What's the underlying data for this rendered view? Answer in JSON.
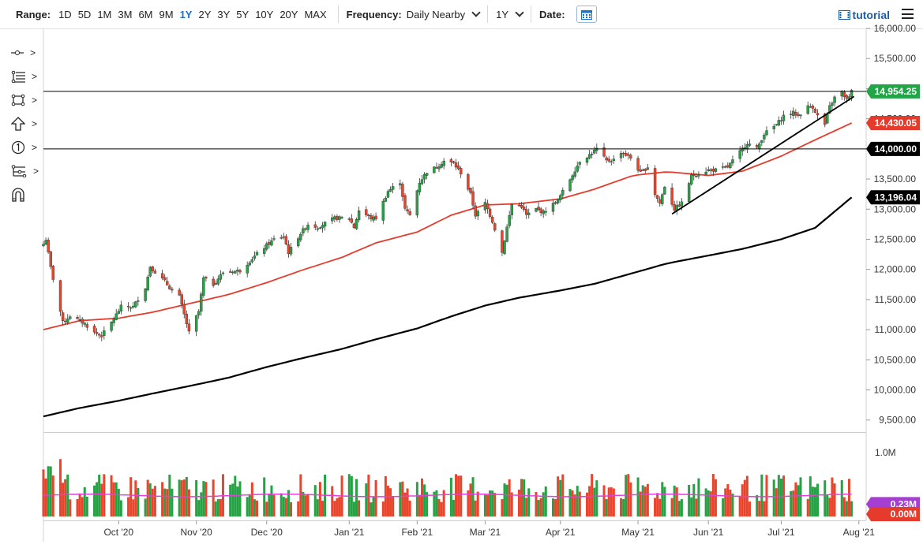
{
  "toolbar": {
    "range_label": "Range:",
    "ranges": [
      "1D",
      "5D",
      "1M",
      "3M",
      "6M",
      "9M",
      "1Y",
      "2Y",
      "3Y",
      "5Y",
      "10Y",
      "20Y",
      "MAX"
    ],
    "active_range": "1Y",
    "frequency_label": "Frequency:",
    "frequency_value": "Daily Nearby",
    "period_value": "1Y",
    "date_label": "Date:",
    "tutorial_label": "tutorial"
  },
  "sidebar": {
    "tools": [
      {
        "name": "crosshair-tool-icon"
      },
      {
        "name": "fibonacci-tool-icon"
      },
      {
        "name": "rectangle-tool-icon"
      },
      {
        "name": "arrow-up-tool-icon"
      },
      {
        "name": "number-marker-tool-icon"
      },
      {
        "name": "pattern-tool-icon"
      },
      {
        "name": "magnet-tool-icon"
      }
    ],
    "expand_glyph": ">"
  },
  "colors": {
    "up": "#25a244",
    "down": "#e8452c",
    "sma_short": "#e53b2c",
    "sma_long": "#000000",
    "badge_last": "#22a546",
    "badge_sma": "#e53b2c",
    "badge_level": "#000000",
    "volume_avg": "#e040d8",
    "badge_vol_avg": "#a53fd1",
    "badge_vol": "#e53b2c"
  },
  "chart_data": [
    {
      "type": "candlestick",
      "price_axis": {
        "min": 9300,
        "max": 16000,
        "ticks": [
          9500,
          10000,
          10500,
          11000,
          11500,
          12000,
          12500,
          13000,
          13500,
          14000,
          14500,
          15000,
          15500,
          16000
        ],
        "tick_labels": [
          "9,500.00",
          "10,000.00",
          "10,500.00",
          "11,000.00",
          "11,500.00",
          "12,000.00",
          "12,500.00",
          "13,000.00",
          "13,500.00",
          "14,000.00",
          "14,500.00",
          "15,000.00",
          "15,500.00",
          "16,000.00"
        ]
      },
      "x_axis": {
        "start": "2020-08-31",
        "end": "2021-08-05",
        "tick_dates": [
          "2020-10-01",
          "2020-11-02",
          "2020-12-01",
          "2021-01-04",
          "2021-02-01",
          "2021-03-01",
          "2021-04-01",
          "2021-05-03",
          "2021-06-01",
          "2021-07-01",
          "2021-08-02"
        ],
        "tick_labels": [
          "Oct '20",
          "Nov '20",
          "Dec '20",
          "Jan '21",
          "Feb '21",
          "Mar '21",
          "Apr '21",
          "May '21",
          "Jun '21",
          "Jul '21",
          "Aug '21"
        ]
      },
      "anchors": [
        [
          "2020-08-31",
          12420
        ],
        [
          "2020-09-01",
          12500
        ],
        [
          "2020-09-03",
          12030
        ],
        [
          "2020-09-08",
          11120
        ],
        [
          "2020-09-11",
          11230
        ],
        [
          "2020-09-17",
          11100
        ],
        [
          "2020-09-21",
          10950
        ],
        [
          "2020-09-24",
          10900
        ],
        [
          "2020-09-28",
          11120
        ],
        [
          "2020-10-02",
          11380
        ],
        [
          "2020-10-07",
          11380
        ],
        [
          "2020-10-12",
          11700
        ],
        [
          "2020-10-14",
          12050
        ],
        [
          "2020-10-16",
          11960
        ],
        [
          "2020-10-20",
          11800
        ],
        [
          "2020-10-23",
          11650
        ],
        [
          "2020-10-26",
          11550
        ],
        [
          "2020-10-30",
          10950
        ],
        [
          "2020-11-03",
          11300
        ],
        [
          "2020-11-05",
          11850
        ],
        [
          "2020-11-09",
          11750
        ],
        [
          "2020-11-13",
          11950
        ],
        [
          "2020-11-20",
          11980
        ],
        [
          "2020-11-25",
          12180
        ],
        [
          "2020-12-01",
          12400
        ],
        [
          "2020-12-04",
          12500
        ],
        [
          "2020-12-08",
          12550
        ],
        [
          "2020-12-10",
          12280
        ],
        [
          "2020-12-15",
          12600
        ],
        [
          "2020-12-18",
          12750
        ],
        [
          "2020-12-22",
          12700
        ],
        [
          "2020-12-29",
          12850
        ],
        [
          "2021-01-04",
          12850
        ],
        [
          "2021-01-06",
          12700
        ],
        [
          "2021-01-08",
          12980
        ],
        [
          "2021-01-13",
          12850
        ],
        [
          "2021-01-15",
          12850
        ],
        [
          "2021-01-20",
          13300
        ],
        [
          "2021-01-25",
          13450
        ],
        [
          "2021-01-27",
          13000
        ],
        [
          "2021-01-29",
          12900
        ],
        [
          "2021-02-02",
          13450
        ],
        [
          "2021-02-05",
          13620
        ],
        [
          "2021-02-09",
          13700
        ],
        [
          "2021-02-12",
          13800
        ],
        [
          "2021-02-16",
          13760
        ],
        [
          "2021-02-19",
          13600
        ],
        [
          "2021-02-23",
          13250
        ],
        [
          "2021-02-25",
          12900
        ],
        [
          "2021-03-01",
          13100
        ],
        [
          "2021-03-04",
          12800
        ],
        [
          "2021-03-08",
          12280
        ],
        [
          "2021-03-10",
          12700
        ],
        [
          "2021-03-12",
          13080
        ],
        [
          "2021-03-16",
          13050
        ],
        [
          "2021-03-18",
          12900
        ],
        [
          "2021-03-22",
          13000
        ],
        [
          "2021-03-25",
          12950
        ],
        [
          "2021-03-31",
          13150
        ],
        [
          "2021-04-05",
          13500
        ],
        [
          "2021-04-09",
          13800
        ],
        [
          "2021-04-13",
          13900
        ],
        [
          "2021-04-16",
          14000
        ],
        [
          "2021-04-20",
          13800
        ],
        [
          "2021-04-23",
          13820
        ],
        [
          "2021-04-26",
          13950
        ],
        [
          "2021-04-30",
          13850
        ],
        [
          "2021-05-04",
          13600
        ],
        [
          "2021-05-07",
          13700
        ],
        [
          "2021-05-10",
          13250
        ],
        [
          "2021-05-12",
          13100
        ],
        [
          "2021-05-14",
          13380
        ],
        [
          "2021-05-18",
          13000
        ],
        [
          "2021-05-21",
          13100
        ],
        [
          "2021-05-25",
          13550
        ],
        [
          "2021-06-01",
          13650
        ],
        [
          "2021-06-04",
          13650
        ],
        [
          "2021-06-09",
          13700
        ],
        [
          "2021-06-14",
          13950
        ],
        [
          "2021-06-17",
          14100
        ],
        [
          "2021-06-21",
          14000
        ],
        [
          "2021-06-24",
          14250
        ],
        [
          "2021-06-29",
          14400
        ],
        [
          "2021-07-02",
          14550
        ],
        [
          "2021-07-06",
          14600
        ],
        [
          "2021-07-08",
          14550
        ],
        [
          "2021-07-12",
          14700
        ],
        [
          "2021-07-14",
          14700
        ],
        [
          "2021-07-16",
          14550
        ],
        [
          "2021-07-19",
          14400
        ],
        [
          "2021-07-21",
          14700
        ],
        [
          "2021-07-23",
          14850
        ],
        [
          "2021-07-26",
          14950
        ],
        [
          "2021-07-27",
          14850
        ],
        [
          "2021-07-29",
          14850
        ],
        [
          "2021-07-30",
          14954.25
        ]
      ],
      "sma_50_anchors": [
        [
          "2020-08-31",
          11000
        ],
        [
          "2020-09-15",
          11150
        ],
        [
          "2020-10-01",
          11190
        ],
        [
          "2020-10-15",
          11290
        ],
        [
          "2020-11-01",
          11450
        ],
        [
          "2020-11-15",
          11580
        ],
        [
          "2020-12-01",
          11780
        ],
        [
          "2020-12-15",
          11980
        ],
        [
          "2021-01-01",
          12200
        ],
        [
          "2021-01-15",
          12440
        ],
        [
          "2021-02-01",
          12620
        ],
        [
          "2021-02-15",
          12900
        ],
        [
          "2021-03-01",
          13070
        ],
        [
          "2021-03-15",
          13090
        ],
        [
          "2021-04-01",
          13170
        ],
        [
          "2021-04-15",
          13330
        ],
        [
          "2021-05-01",
          13560
        ],
        [
          "2021-05-15",
          13620
        ],
        [
          "2021-06-01",
          13560
        ],
        [
          "2021-06-15",
          13630
        ],
        [
          "2021-07-01",
          13880
        ],
        [
          "2021-07-15",
          14150
        ],
        [
          "2021-07-30",
          14430.05
        ]
      ],
      "sma_200_anchors": [
        [
          "2020-08-31",
          9560
        ],
        [
          "2020-09-15",
          9700
        ],
        [
          "2020-10-01",
          9820
        ],
        [
          "2020-10-15",
          9940
        ],
        [
          "2020-11-01",
          10080
        ],
        [
          "2020-11-15",
          10200
        ],
        [
          "2020-12-01",
          10380
        ],
        [
          "2020-12-15",
          10520
        ],
        [
          "2021-01-01",
          10680
        ],
        [
          "2021-01-15",
          10840
        ],
        [
          "2021-02-01",
          11020
        ],
        [
          "2021-02-15",
          11220
        ],
        [
          "2021-03-01",
          11400
        ],
        [
          "2021-03-15",
          11530
        ],
        [
          "2021-04-01",
          11650
        ],
        [
          "2021-04-15",
          11760
        ],
        [
          "2021-05-01",
          11940
        ],
        [
          "2021-05-15",
          12100
        ],
        [
          "2021-06-01",
          12230
        ],
        [
          "2021-06-15",
          12340
        ],
        [
          "2021-07-01",
          12500
        ],
        [
          "2021-07-15",
          12690
        ],
        [
          "2021-07-30",
          13196.04
        ]
      ],
      "horizontal_levels": [
        14954.25,
        14000
      ],
      "trendline": {
        "from": [
          "2021-05-17",
          12920
        ],
        "to": [
          "2021-07-31",
          14870
        ]
      },
      "price_labels": [
        {
          "value": 14954.25,
          "text": "14,954.25",
          "kind": "last"
        },
        {
          "value": 14430.05,
          "text": "14,430.05",
          "kind": "sma"
        },
        {
          "value": 14000,
          "text": "14,000.00",
          "kind": "level"
        },
        {
          "value": 13196.04,
          "text": "13,196.04",
          "kind": "level"
        }
      ]
    },
    {
      "type": "bar",
      "name": "volume",
      "y_axis": {
        "max": 1.15,
        "ticks": [
          1.0
        ],
        "tick_labels": [
          "1.0M"
        ]
      },
      "last_volume": 0.0,
      "average_volume": 0.23,
      "labels": [
        {
          "text": "0.23M",
          "kind": "vol_avg"
        },
        {
          "text": "0.00M",
          "kind": "vol"
        }
      ]
    }
  ]
}
